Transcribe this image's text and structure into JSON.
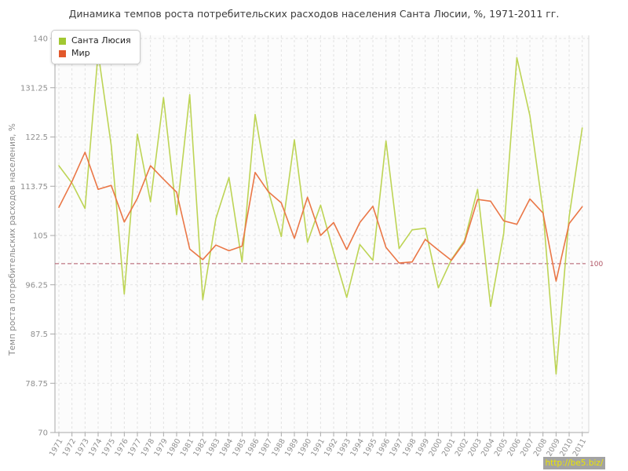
{
  "watermark": {
    "text": "http://be5.biz/",
    "bg": "#a3a3a3",
    "color": "#ece600"
  },
  "chart_data": {
    "type": "line",
    "title": "Динамика темпов роста потребительских расходов населения Санта Люсии, %, 1971-2011 гг.",
    "ylabel": "Темп роста потребительских расходов населения, %",
    "xlabel": "",
    "ylim": [
      70,
      140
    ],
    "yticks": [
      140,
      131.25,
      122.5,
      113.75,
      105,
      96.25,
      87.5,
      78.75,
      70
    ],
    "grid": true,
    "legend_position": "top-left",
    "x": [
      1971,
      1972,
      1973,
      1974,
      1975,
      1976,
      1977,
      1978,
      1979,
      1980,
      1981,
      1982,
      1983,
      1984,
      1985,
      1986,
      1987,
      1988,
      1989,
      1990,
      1991,
      1992,
      1993,
      1994,
      1995,
      1996,
      1997,
      1998,
      1999,
      2000,
      2001,
      2002,
      2003,
      2004,
      2005,
      2006,
      2007,
      2008,
      2009,
      2010,
      2011
    ],
    "series": [
      {
        "name": "Санта Люсия",
        "color": "#bdd455",
        "swatch_color": "#a2c832",
        "values": [
          117.4,
          114.3,
          109.8,
          137.5,
          121.0,
          94.6,
          123.0,
          111.0,
          129.5,
          108.7,
          130.0,
          93.6,
          108.0,
          115.3,
          100.3,
          126.5,
          113.0,
          104.8,
          122.0,
          103.8,
          110.4,
          102.0,
          94.0,
          103.4,
          100.6,
          121.8,
          102.7,
          106.0,
          106.3,
          95.7,
          100.7,
          104.1,
          113.2,
          92.4,
          105.4,
          136.6,
          126.3,
          109.5,
          80.4,
          108.3,
          124.1
        ]
      },
      {
        "name": "Мир",
        "color": "#ea7747",
        "swatch_color": "#e2582b",
        "values": [
          110.0,
          114.6,
          119.8,
          113.2,
          113.9,
          107.4,
          111.6,
          117.4,
          115.0,
          112.7,
          102.6,
          100.7,
          103.3,
          102.3,
          103.1,
          116.2,
          112.8,
          110.8,
          104.5,
          111.8,
          105.0,
          107.3,
          102.5,
          107.3,
          110.2,
          102.9,
          100.1,
          100.3,
          104.3,
          102.4,
          100.6,
          103.8,
          111.4,
          111.1,
          107.6,
          107.0,
          111.5,
          109.0,
          96.9,
          107.1,
          110.1
        ]
      }
    ],
    "threshold": {
      "value": 100,
      "label": "100",
      "color": "#b05565"
    },
    "style": {
      "plot_bg": "#fcfcfc",
      "grid_color": "#e2e2e2",
      "axis_color": "#a9a9a9",
      "right_border_color": "#d9d9d9",
      "tick_label_color": "#8f8f8f"
    }
  }
}
